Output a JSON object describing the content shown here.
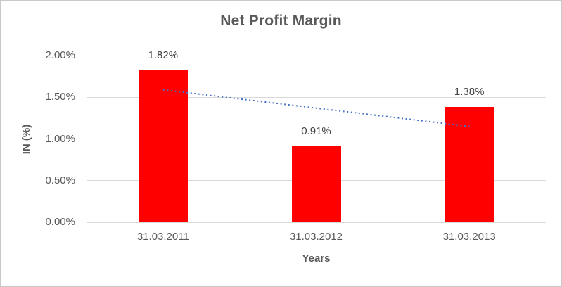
{
  "chart_data": {
    "type": "bar",
    "title": "Net Profit Margin",
    "xlabel": "Years",
    "ylabel": "IN (%)",
    "categories": [
      "31.03.2011",
      "31.03.2012",
      "31.03.2013"
    ],
    "values": [
      1.82,
      0.91,
      1.38
    ],
    "data_labels": [
      "1.82%",
      "0.91%",
      "1.38%"
    ],
    "unit": "%",
    "ylim": [
      0,
      2.0
    ],
    "y_ticks": [
      {
        "value": 0.0,
        "label": "0.00%"
      },
      {
        "value": 0.5,
        "label": "0.50%"
      },
      {
        "value": 1.0,
        "label": "1.00%"
      },
      {
        "value": 1.5,
        "label": "1.50%"
      },
      {
        "value": 2.0,
        "label": "2.00%"
      }
    ],
    "grid": true,
    "legend": "none",
    "trendline": {
      "type": "linear",
      "style": "dotted",
      "start_value": 1.59,
      "end_value": 1.15
    },
    "colors": {
      "bar": "#ff0000",
      "trendline": "#4472c4",
      "gridline": "#d9d9d9",
      "title_text": "#595959",
      "axis_text": "#595959",
      "data_label_text": "#404040",
      "border": "#c9c9c9"
    }
  }
}
